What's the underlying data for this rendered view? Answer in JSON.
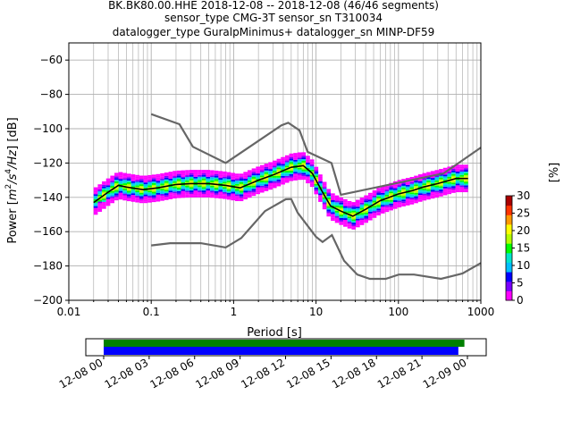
{
  "chart_data": [
    {
      "type": "heatmap",
      "title_lines": [
        "BK.BK80.00.HHE   2018-12-08 -- 2018-12-08  (46/46 segments)",
        "sensor_type CMG-3T sensor_sn T310034",
        "datalogger_type GuralpMinimus+ datalogger_sn MINP-DF59"
      ],
      "xlabel": "Period [s]",
      "ylabel": "Power [m²/s⁴/Hz] [dB]",
      "ylabel_parts": {
        "pre": "Power [",
        "m": "m",
        "two": "2",
        "s": "/s",
        "four": "4",
        "hz": "/Hz",
        "post": "] [dB]"
      },
      "x_scale": "log",
      "xlim": [
        0.01,
        1000
      ],
      "ylim": [
        -200,
        -50
      ],
      "x_ticks": [
        {
          "v": 0.01,
          "label": "0.01"
        },
        {
          "v": 0.1,
          "label": "0.1"
        },
        {
          "v": 1,
          "label": "1"
        },
        {
          "v": 10,
          "label": "10"
        },
        {
          "v": 100,
          "label": "100"
        },
        {
          "v": 1000,
          "label": "1000"
        }
      ],
      "y_ticks": [
        {
          "v": -60,
          "label": "−60"
        },
        {
          "v": -80,
          "label": "−80"
        },
        {
          "v": -100,
          "label": "−100"
        },
        {
          "v": -120,
          "label": "−120"
        },
        {
          "v": -140,
          "label": "−140"
        },
        {
          "v": -160,
          "label": "−160"
        },
        {
          "v": -180,
          "label": "−180"
        },
        {
          "v": -200,
          "label": "−200"
        }
      ],
      "grid": true,
      "noise_model_high": [
        [
          0.1,
          -91.5
        ],
        [
          0.22,
          -97.4
        ],
        [
          0.32,
          -110.5
        ],
        [
          0.8,
          -120
        ],
        [
          3.8,
          -98
        ],
        [
          4.6,
          -96.5
        ],
        [
          6.3,
          -101
        ],
        [
          7.9,
          -113.5
        ],
        [
          15.4,
          -120
        ],
        [
          20,
          -138.5
        ],
        [
          354.8,
          -126
        ],
        [
          1000,
          -111
        ]
      ],
      "noise_model_low": [
        [
          0.1,
          -168
        ],
        [
          0.17,
          -166.7
        ],
        [
          0.4,
          -166.7
        ],
        [
          0.8,
          -169.2
        ],
        [
          1.24,
          -163.7
        ],
        [
          2.4,
          -148
        ],
        [
          4.3,
          -141.1
        ],
        [
          5,
          -141
        ],
        [
          6,
          -149
        ],
        [
          10,
          -163
        ],
        [
          12,
          -166
        ],
        [
          15.6,
          -162
        ],
        [
          21.9,
          -177
        ],
        [
          31.6,
          -185
        ],
        [
          45,
          -187.5
        ],
        [
          70,
          -187.5
        ],
        [
          101,
          -185
        ],
        [
          154.5,
          -185
        ],
        [
          328,
          -187.5
        ],
        [
          600,
          -184.4
        ],
        [
          1000,
          -178.3
        ]
      ],
      "median_curve": [
        [
          0.02,
          -143
        ],
        [
          0.03,
          -137
        ],
        [
          0.04,
          -133
        ],
        [
          0.05,
          -134
        ],
        [
          0.08,
          -135.5
        ],
        [
          0.12,
          -134.5
        ],
        [
          0.2,
          -132.5
        ],
        [
          0.3,
          -132
        ],
        [
          0.5,
          -132
        ],
        [
          0.8,
          -133
        ],
        [
          1.2,
          -134.5
        ],
        [
          2,
          -130
        ],
        [
          3,
          -127
        ],
        [
          5,
          -122.5
        ],
        [
          7,
          -121.5
        ],
        [
          9,
          -126
        ],
        [
          12,
          -137
        ],
        [
          15,
          -145
        ],
        [
          20,
          -148
        ],
        [
          28,
          -151
        ],
        [
          40,
          -147
        ],
        [
          60,
          -142
        ],
        [
          100,
          -138
        ],
        [
          150,
          -136
        ],
        [
          200,
          -134
        ],
        [
          300,
          -132
        ],
        [
          500,
          -129
        ],
        [
          700,
          -129
        ]
      ],
      "psd_spread_db": 8,
      "colorbar": {
        "label": "[%]",
        "min": 0,
        "max": 30,
        "ticks": [
          "0",
          "5",
          "10",
          "15",
          "20",
          "25",
          "30"
        ]
      },
      "colormap": [
        "#ffffff",
        "#ff00ff",
        "#7a00ff",
        "#0000ff",
        "#00bfff",
        "#00e5cc",
        "#00ff00",
        "#b4ff00",
        "#ffff00",
        "#ff9900",
        "#ff3300",
        "#aa0000"
      ]
    },
    {
      "type": "timeline",
      "x_tick_labels": [
        "12-08 00",
        "12-08 03",
        "12-08 06",
        "12-08 09",
        "12-08 12",
        "12-08 15",
        "12-08 18",
        "12-08 21",
        "12-09 00"
      ],
      "green_bar": {
        "start_hour": 0,
        "end_hour": 23.8,
        "color": "#008000"
      },
      "blue_bar": {
        "start_hour": 0,
        "end_hour": 23.4,
        "color": "#0000ff"
      }
    }
  ]
}
